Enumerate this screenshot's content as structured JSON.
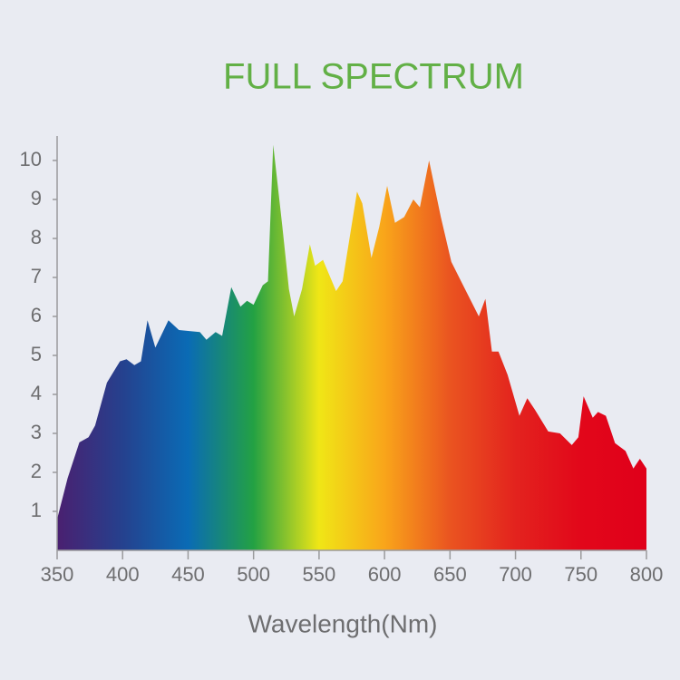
{
  "chart_data": {
    "type": "area",
    "title": "FULL SPECTRUM",
    "x_label": "Wavelength(Nm)",
    "x": [
      350,
      358,
      367,
      374,
      379,
      388,
      398,
      403,
      409,
      414,
      419,
      425,
      435,
      443,
      459,
      464,
      471,
      476,
      483,
      490,
      495,
      500,
      507,
      511,
      515,
      522,
      527,
      531,
      537,
      543,
      547,
      553,
      563,
      568,
      579,
      583,
      590,
      596,
      602,
      608,
      615,
      622,
      627,
      634,
      643,
      651,
      663,
      672,
      677,
      682,
      687,
      694,
      703,
      709,
      715,
      725,
      734,
      743,
      748,
      752,
      759,
      763,
      769,
      776,
      784,
      790,
      795,
      800
    ],
    "values": [
      0.8,
      1.85,
      2.77,
      2.9,
      3.2,
      4.3,
      4.85,
      4.9,
      4.75,
      4.85,
      5.9,
      5.2,
      5.9,
      5.65,
      5.6,
      5.4,
      5.6,
      5.5,
      6.75,
      6.25,
      6.4,
      6.3,
      6.8,
      6.9,
      10.4,
      8.3,
      6.7,
      6.0,
      6.7,
      7.85,
      7.3,
      7.45,
      6.65,
      6.9,
      9.2,
      8.9,
      7.5,
      8.3,
      9.35,
      8.4,
      8.55,
      9.0,
      8.8,
      10.0,
      8.55,
      7.4,
      6.6,
      6.0,
      6.45,
      5.1,
      5.1,
      4.5,
      3.45,
      3.9,
      3.6,
      3.05,
      3.0,
      2.7,
      2.9,
      3.95,
      3.4,
      3.55,
      3.45,
      2.75,
      2.55,
      2.1,
      2.35,
      2.1
    ],
    "gradient": [
      "#4a2070",
      "#25418e",
      "#0a6bb5",
      "#23a143",
      "#f0e616",
      "#f9a51a",
      "#ea5420",
      "#e3231e",
      "#e2071a",
      "#e0001a"
    ],
    "xlim": [
      350,
      800
    ],
    "xticks": [
      350,
      400,
      450,
      500,
      550,
      600,
      650,
      700,
      750,
      800
    ],
    "ylim": [
      0,
      10.5
    ],
    "yticks": [
      1,
      2,
      3,
      4,
      5,
      6,
      7,
      8,
      9,
      10
    ]
  }
}
